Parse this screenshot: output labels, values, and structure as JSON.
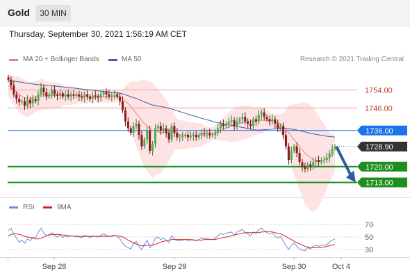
{
  "header": {
    "instrument": "Gold",
    "timeframe": "30 MIN",
    "datetime": "Thursday, September 30, 2021 1:56:19 AM CET"
  },
  "legend": {
    "bollinger_label": "MA 20 + Bollinger Bands",
    "ma50_label": "MA 50",
    "copyright": "Research © 2021 Trading Central",
    "rsi_label": "RSI",
    "rsi_ma_label": "9MA"
  },
  "colors": {
    "up_candle": "#4caf50",
    "down_candle": "#8b1a1a",
    "bollinger_fill": "#fde0e0",
    "ma20": "#f08080",
    "ma50": "#3e5fa6",
    "resistance": "#f3a0a0",
    "pivot": "#1a73e8",
    "support": "#1e8e1e",
    "current": "#333333",
    "arrow": "#2f5aa0",
    "rsi": "#6a8be0",
    "rsi_ma": "#e02020"
  },
  "chart_data": [
    {
      "type": "candlestick",
      "x_labels": [
        "Sep 28",
        "Sep 29",
        "Sep 30",
        "Oct 4"
      ],
      "ylim": [
        1707,
        1763
      ],
      "price_levels": [
        {
          "label": "1754.00",
          "value": 1754.0,
          "kind": "resistance"
        },
        {
          "label": "1746.00",
          "value": 1746.0,
          "kind": "resistance"
        },
        {
          "label": "1736.00",
          "value": 1736.0,
          "kind": "pivot"
        },
        {
          "label": "1728.90",
          "value": 1728.9,
          "kind": "current"
        },
        {
          "label": "1720.00",
          "value": 1720.0,
          "kind": "support"
        },
        {
          "label": "1713.00",
          "value": 1713.0,
          "kind": "support"
        }
      ],
      "close": [
        1758.5,
        1756,
        1752,
        1750,
        1748.5,
        1749,
        1747,
        1749.5,
        1748,
        1750,
        1749,
        1752,
        1755,
        1753,
        1751,
        1752,
        1754,
        1752,
        1751.5,
        1752.5,
        1751,
        1752,
        1751,
        1752,
        1751.5,
        1752,
        1751,
        1750.5,
        1752,
        1751,
        1750,
        1751.5,
        1751,
        1750.5,
        1752,
        1753,
        1752,
        1751,
        1751.5,
        1752,
        1751,
        1749,
        1745,
        1740,
        1737,
        1735,
        1738,
        1739,
        1734,
        1729,
        1732,
        1736,
        1727,
        1730,
        1737,
        1738,
        1736,
        1737,
        1735,
        1732,
        1738,
        1735,
        1733,
        1733,
        1733.5,
        1734,
        1733,
        1733.5,
        1734,
        1733,
        1734,
        1735,
        1734.5,
        1735,
        1734,
        1734,
        1735,
        1737,
        1739,
        1738,
        1739,
        1740,
        1740.5,
        1738,
        1740,
        1741,
        1742,
        1740,
        1739,
        1738,
        1741,
        1740,
        1743,
        1744,
        1742,
        1741,
        1740,
        1741,
        1739,
        1737,
        1738,
        1734,
        1729,
        1723,
        1727,
        1729,
        1726,
        1722,
        1720,
        1719,
        1721,
        1720,
        1722,
        1723,
        1722,
        1723,
        1723,
        1724,
        1726,
        1728,
        1728.9
      ],
      "ma20": [
        1756,
        1755,
        1754,
        1753,
        1752,
        1751,
        1750.5,
        1750,
        1750,
        1750.5,
        1751,
        1751.5,
        1752,
        1752,
        1751.5,
        1751.5,
        1751.5,
        1751.5,
        1751.5,
        1751.5,
        1751.5,
        1751.5,
        1751.5,
        1751.5,
        1751.5,
        1751.5,
        1751.5,
        1751,
        1751,
        1751,
        1751,
        1751,
        1751,
        1751,
        1751,
        1751,
        1751,
        1751,
        1751,
        1751,
        1751,
        1751,
        1750,
        1749,
        1748,
        1746.5,
        1745,
        1743.5,
        1742,
        1740.5,
        1739,
        1738,
        1737,
        1736,
        1736,
        1735.5,
        1735,
        1735,
        1735,
        1735,
        1735,
        1735,
        1734.5,
        1734,
        1734,
        1734,
        1734,
        1734,
        1734,
        1734,
        1734,
        1734,
        1734,
        1734,
        1734,
        1734.5,
        1735,
        1735.5,
        1736,
        1736.5,
        1737,
        1737.5,
        1738,
        1738.5,
        1739,
        1739,
        1739.5,
        1739.5,
        1740,
        1740,
        1740,
        1740,
        1740.5,
        1740.5,
        1740.5,
        1740.5,
        1740.5,
        1740.5,
        1740,
        1739.5,
        1739,
        1738,
        1736.5,
        1735,
        1733.5,
        1732,
        1730.5,
        1729,
        1727.5,
        1726,
        1725,
        1724,
        1723,
        1722.5,
        1722.5,
        1722.5,
        1723,
        1723.5,
        1724,
        1725,
        1726
      ]
    },
    {
      "type": "line",
      "title": "RSI",
      "ylim": [
        20,
        80
      ],
      "y_ticks": [
        70,
        50,
        30
      ],
      "x_labels": [
        "Sep 28",
        "Sep 29",
        "Sep 30",
        "Oct 4"
      ],
      "series": [
        {
          "name": "RSI",
          "values": [
            60,
            64,
            55,
            48,
            42,
            45,
            40,
            47,
            44,
            50,
            49,
            58,
            64,
            57,
            52,
            54,
            57,
            52,
            50,
            53,
            49,
            52,
            50,
            52,
            51,
            52,
            50,
            49,
            53,
            51,
            49,
            52,
            51,
            50,
            53,
            55,
            53,
            51,
            52,
            53,
            51,
            47,
            40,
            35,
            33,
            31,
            40,
            43,
            35,
            30,
            38,
            45,
            33,
            38,
            48,
            50,
            46,
            48,
            45,
            41,
            52,
            47,
            44,
            44,
            45,
            46,
            44,
            45,
            46,
            44,
            46,
            48,
            47,
            48,
            46,
            46,
            48,
            52,
            56,
            54,
            56,
            57,
            58,
            53,
            58,
            60,
            62,
            57,
            55,
            52,
            58,
            56,
            62,
            64,
            60,
            57,
            55,
            57,
            52,
            48,
            51,
            43,
            36,
            30,
            37,
            40,
            35,
            31,
            29,
            28,
            33,
            31,
            35,
            37,
            35,
            37,
            37,
            38,
            42,
            45,
            47
          ]
        },
        {
          "name": "9MA",
          "values": [
            52,
            54,
            55,
            55,
            54,
            53,
            51,
            50,
            49,
            48,
            47,
            47,
            48,
            50,
            52,
            53,
            54,
            54,
            54,
            54,
            53,
            53,
            52,
            52,
            51,
            51,
            51,
            51,
            51,
            51,
            51,
            51,
            51,
            51,
            51,
            51,
            51,
            51,
            51,
            52,
            52,
            51,
            50,
            48,
            45,
            43,
            40,
            39,
            37,
            36,
            36,
            37,
            37,
            37,
            38,
            40,
            42,
            43,
            44,
            45,
            46,
            46,
            46,
            46,
            46,
            46,
            46,
            46,
            45,
            45,
            45,
            45,
            46,
            46,
            46,
            46,
            46,
            47,
            48,
            49,
            50,
            51,
            52,
            53,
            54,
            55,
            56,
            57,
            57,
            57,
            57,
            57,
            57,
            58,
            58,
            59,
            59,
            58,
            57,
            56,
            55,
            53,
            51,
            48,
            46,
            43,
            41,
            39,
            37,
            35,
            34,
            33,
            33,
            33,
            33,
            33,
            34,
            35,
            36,
            37,
            38
          ]
        }
      ]
    }
  ]
}
